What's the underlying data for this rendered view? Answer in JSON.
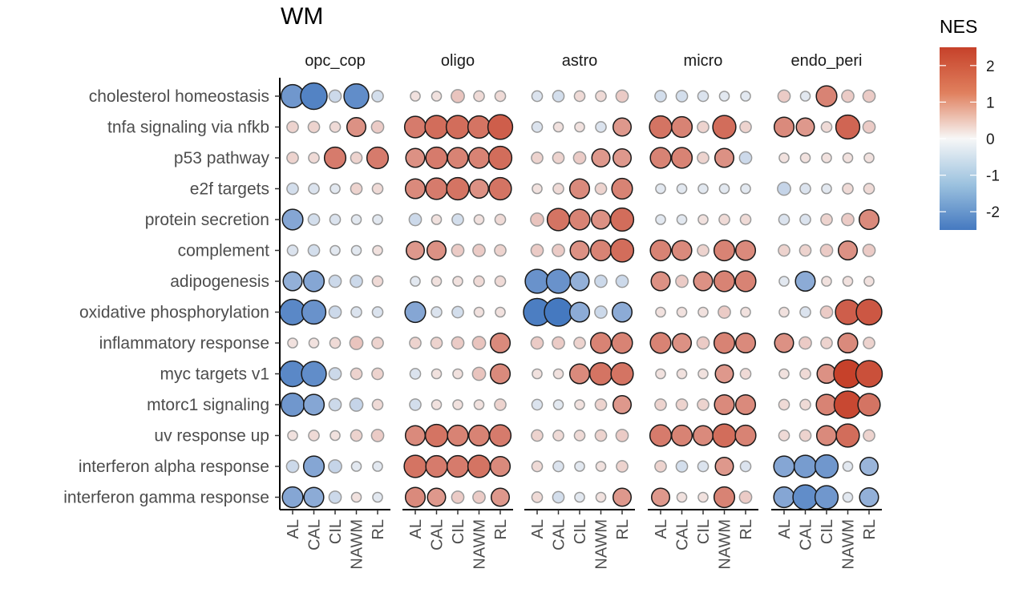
{
  "chart_data": {
    "type": "dotplot",
    "title": "WM",
    "panels": [
      "opc_cop",
      "oligo",
      "astro",
      "micro",
      "endo_peri"
    ],
    "x_categories": [
      "AL",
      "CAL",
      "CIL",
      "NAWM",
      "RL"
    ],
    "y_categories": [
      "cholesterol homeostasis",
      "tnfa signaling via nfkb",
      "p53 pathway",
      "e2f targets",
      "protein secretion",
      "complement",
      "adipogenesis",
      "oxidative phosphorylation",
      "inflammatory response",
      "myc targets v1",
      "mtorc1 signaling",
      "uv response up",
      "interferon alpha response",
      "interferon gamma response"
    ],
    "color_metric": "NES",
    "color_range": [
      -2.5,
      2.5
    ],
    "legend_ticks": [
      "2",
      "1",
      "0",
      "-1",
      "-2"
    ],
    "legend_tick_values": [
      2,
      1,
      0,
      -1,
      -2
    ],
    "palette": {
      "low": "#4579c0",
      "mid": "#f7f7f7",
      "high": "#c6412a"
    },
    "nes": {
      "opc_cop": [
        [
          -1.9,
          -2.3,
          -0.6,
          -2.1,
          -0.5
        ],
        [
          0.5,
          0.5,
          0.4,
          1.4,
          0.6
        ],
        [
          0.5,
          0.4,
          1.7,
          0.5,
          1.7
        ],
        [
          -0.5,
          -0.4,
          -0.3,
          0.5,
          0.4
        ],
        [
          -1.6,
          -0.5,
          -0.4,
          -0.3,
          -0.3
        ],
        [
          -0.4,
          -0.5,
          -0.3,
          -0.3,
          0.3
        ],
        [
          -1.4,
          -1.6,
          -0.6,
          -0.6,
          0.4
        ],
        [
          -2.2,
          -2.0,
          -0.6,
          -0.4,
          -0.4
        ],
        [
          0.3,
          0.3,
          0.4,
          0.7,
          0.5
        ],
        [
          -2.2,
          -2.1,
          -0.6,
          0.5,
          0.5
        ],
        [
          -1.9,
          -1.6,
          -0.6,
          -0.7,
          0.4
        ],
        [
          0.3,
          0.4,
          0.3,
          0.5,
          0.6
        ],
        [
          -0.6,
          -1.6,
          -0.7,
          -0.3,
          -0.3
        ],
        [
          -1.6,
          -1.5,
          -0.6,
          0.3,
          -0.3
        ]
      ],
      "oligo": [
        [
          0.3,
          0.3,
          0.7,
          0.4,
          0.4
        ],
        [
          1.7,
          1.9,
          1.9,
          1.8,
          2.1
        ],
        [
          1.4,
          1.7,
          1.6,
          1.6,
          1.9
        ],
        [
          1.5,
          1.7,
          1.8,
          1.4,
          1.8
        ],
        [
          -0.6,
          0.3,
          -0.5,
          0.3,
          0.4
        ],
        [
          1.3,
          1.4,
          0.6,
          0.6,
          0.5
        ],
        [
          -0.3,
          0.3,
          0.3,
          0.4,
          0.4
        ],
        [
          -1.6,
          -0.4,
          -0.5,
          0.3,
          0.3
        ],
        [
          0.5,
          0.5,
          0.6,
          0.7,
          1.5
        ],
        [
          -0.4,
          0.3,
          0.3,
          0.7,
          1.5
        ],
        [
          -0.5,
          0.3,
          0.3,
          0.3,
          0.5
        ],
        [
          1.5,
          1.8,
          1.6,
          1.6,
          1.7
        ],
        [
          1.8,
          1.7,
          1.7,
          1.8,
          1.5
        ],
        [
          1.5,
          1.3,
          0.6,
          0.6,
          1.3
        ]
      ],
      "astro": [
        [
          -0.4,
          -0.5,
          0.4,
          0.4,
          0.6
        ],
        [
          -0.4,
          0.3,
          0.3,
          -0.4,
          1.3
        ],
        [
          0.5,
          0.5,
          0.6,
          1.3,
          1.3
        ],
        [
          0.3,
          0.4,
          1.5,
          0.5,
          1.6
        ],
        [
          0.7,
          1.8,
          1.6,
          1.4,
          1.9
        ],
        [
          0.6,
          0.6,
          1.4,
          1.6,
          1.9
        ],
        [
          -2.0,
          -2.0,
          -1.4,
          -0.6,
          -0.6
        ],
        [
          -2.4,
          -2.5,
          -1.5,
          -0.6,
          -1.5
        ],
        [
          0.6,
          0.6,
          0.5,
          1.6,
          1.6
        ],
        [
          0.3,
          0.3,
          1.5,
          1.8,
          1.8
        ],
        [
          -0.4,
          -0.3,
          0.3,
          0.5,
          1.3
        ],
        [
          0.5,
          0.4,
          0.4,
          0.5,
          0.6
        ],
        [
          0.4,
          -0.4,
          -0.3,
          0.3,
          0.5
        ],
        [
          0.4,
          -0.5,
          -0.3,
          0.3,
          1.3
        ]
      ],
      "micro": [
        [
          -0.5,
          -0.5,
          -0.4,
          -0.3,
          -0.3
        ],
        [
          1.8,
          1.6,
          0.5,
          1.9,
          0.5
        ],
        [
          1.6,
          1.6,
          0.5,
          1.4,
          -0.6
        ],
        [
          -0.3,
          -0.3,
          -0.3,
          -0.3,
          -0.3
        ],
        [
          -0.3,
          -0.3,
          0.3,
          0.4,
          0.4
        ],
        [
          1.6,
          1.5,
          0.5,
          1.6,
          1.5
        ],
        [
          1.4,
          0.6,
          1.4,
          1.6,
          1.6
        ],
        [
          0.3,
          0.3,
          0.3,
          0.6,
          0.3
        ],
        [
          1.6,
          1.4,
          0.6,
          1.6,
          1.5
        ],
        [
          0.3,
          0.3,
          0.3,
          1.3,
          0.4
        ],
        [
          0.5,
          0.5,
          0.5,
          1.5,
          1.5
        ],
        [
          1.7,
          1.6,
          1.5,
          1.9,
          1.6
        ],
        [
          0.5,
          -0.5,
          -0.4,
          1.3,
          -0.4
        ],
        [
          1.3,
          0.3,
          0.3,
          1.6,
          0.6
        ]
      ],
      "endo_peri": [
        [
          0.6,
          -0.3,
          1.6,
          0.6,
          0.6
        ],
        [
          1.5,
          1.3,
          0.4,
          2.0,
          0.6
        ],
        [
          0.3,
          0.3,
          0.3,
          0.3,
          0.3
        ],
        [
          -0.7,
          -0.4,
          -0.3,
          0.4,
          0.4
        ],
        [
          -0.4,
          -0.4,
          0.5,
          0.6,
          1.5
        ],
        [
          0.5,
          0.5,
          0.6,
          1.4,
          0.6
        ],
        [
          -0.3,
          -1.5,
          0.3,
          0.3,
          0.3
        ],
        [
          0.3,
          -0.4,
          0.6,
          2.1,
          2.2
        ],
        [
          1.4,
          0.6,
          0.5,
          1.5,
          0.5
        ],
        [
          0.3,
          0.4,
          1.4,
          2.5,
          2.3
        ],
        [
          0.4,
          0.4,
          1.6,
          2.4,
          1.8
        ],
        [
          0.4,
          0.5,
          1.5,
          1.9,
          0.5
        ],
        [
          -1.6,
          -1.8,
          -1.9,
          -0.3,
          -1.3
        ],
        [
          -1.6,
          -2.1,
          -1.9,
          -0.3,
          -1.4
        ]
      ]
    }
  }
}
